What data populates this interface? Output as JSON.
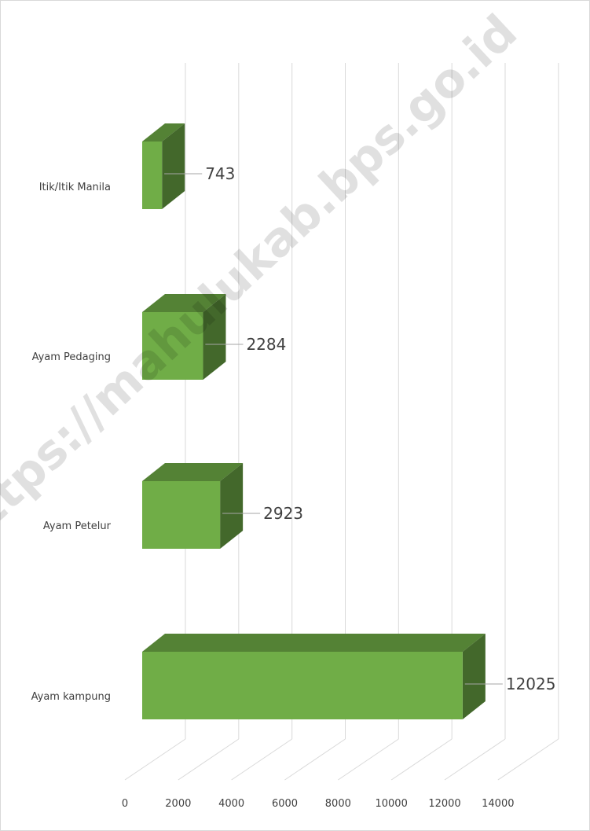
{
  "chart_data": {
    "type": "bar",
    "orientation": "horizontal",
    "style": "3d",
    "categories": [
      "Itik/Itik Manila",
      "Ayam Pedaging",
      "Ayam Petelur",
      "Ayam kampung"
    ],
    "values": [
      743,
      2284,
      2923,
      12025
    ],
    "xlim": [
      0,
      14000
    ],
    "xticks": [
      0,
      2000,
      4000,
      6000,
      8000,
      10000,
      12000,
      14000
    ],
    "grid": true,
    "legend": "none",
    "bar_color": "#70ad47",
    "bar_top_color": "#548235",
    "bar_side_color": "#43682b"
  },
  "watermark": "https://mahulukab.bps.go.id"
}
